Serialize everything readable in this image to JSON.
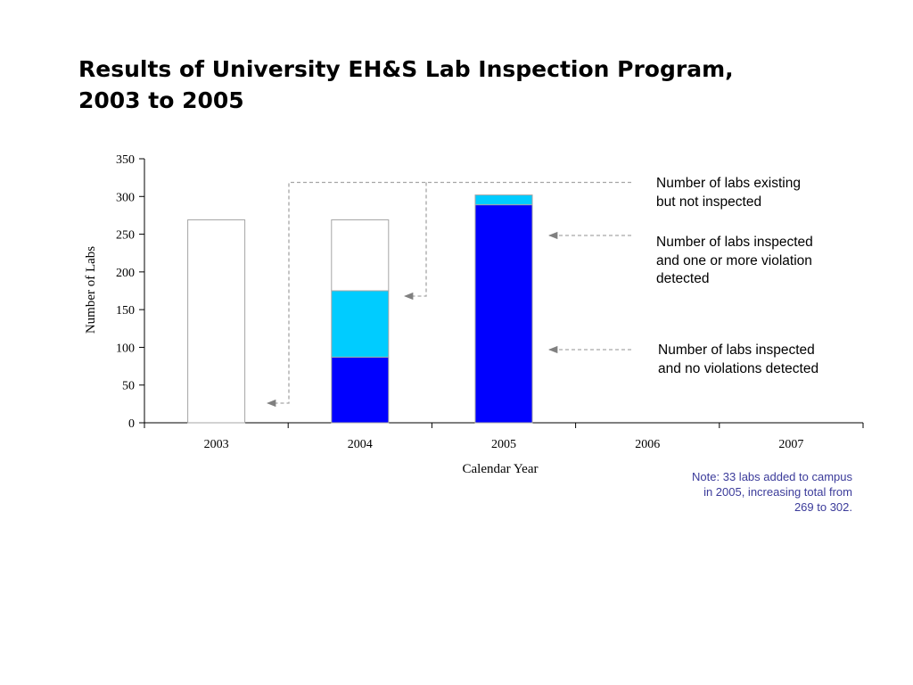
{
  "title_lines": [
    "Results of University EH&S Lab Inspection Program,",
    "2003 to 2005"
  ],
  "chart_data": {
    "type": "bar",
    "stacked": true,
    "categories": [
      "2003",
      "2004",
      "2005",
      "2006",
      "2007"
    ],
    "series": [
      {
        "key": "no_violations",
        "values": [
          0,
          87,
          289,
          null,
          null
        ],
        "color": "#0000ff"
      },
      {
        "key": "violations",
        "values": [
          0,
          88,
          13,
          null,
          null
        ],
        "color": "#00ccff"
      },
      {
        "key": "not_inspected",
        "values": [
          269,
          94,
          0,
          null,
          null
        ],
        "color": "#ffffff"
      }
    ],
    "xlabel": "Calendar Year",
    "ylabel": "Number of Labs",
    "ylim": [
      0,
      350
    ],
    "yticks": [
      0,
      50,
      100,
      150,
      200,
      250,
      300,
      350
    ],
    "grid": false
  },
  "callouts": {
    "not_inspected": [
      "Number of labs existing",
      "but not inspected"
    ],
    "violations": [
      "Number of labs inspected",
      "and one or more violation",
      "detected"
    ],
    "no_violations": [
      "Number of labs inspected",
      "and no violations detected"
    ]
  },
  "note_lines": [
    "Note: 33 labs added to campus",
    "in 2005, increasing total from",
    "269 to 302."
  ],
  "colors": {
    "bar_outline": "#a6a6a6",
    "callout_line": "#a6a6a6",
    "arrow": "#808080",
    "note_text": "#3b3b9a"
  }
}
